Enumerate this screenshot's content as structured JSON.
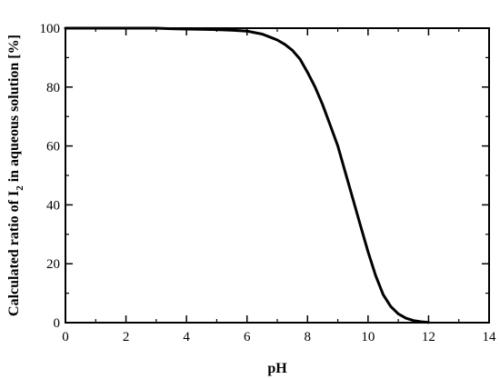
{
  "chart_data": {
    "type": "line",
    "xlabel": "pH",
    "ylabel": {
      "prefix": "Calculated ratio of I",
      "subscript": "2",
      "suffix": " in aqueous solution [%]"
    },
    "xlim": [
      0,
      14
    ],
    "ylim": [
      0,
      100
    ],
    "xticks": [
      0,
      2,
      4,
      6,
      8,
      10,
      12,
      14
    ],
    "yticks": [
      0,
      20,
      40,
      60,
      80,
      100
    ],
    "grid": false,
    "legend": "none",
    "series": [
      {
        "color": "#000000",
        "x": [
          0,
          2,
          3,
          3.5,
          4,
          4.5,
          5,
          5.5,
          6,
          6.25,
          6.5,
          6.75,
          7,
          7.25,
          7.5,
          7.75,
          8,
          8.25,
          8.5,
          8.75,
          9,
          9.25,
          9.5,
          9.75,
          10,
          10.25,
          10.5,
          10.75,
          11,
          11.25,
          11.5,
          11.75,
          12
        ],
        "y": [
          100,
          100,
          100,
          99.8,
          99.7,
          99.6,
          99.5,
          99.3,
          99,
          98.5,
          98,
          97,
          96,
          94.5,
          92.5,
          89.5,
          85,
          80,
          74,
          67,
          60,
          51,
          42,
          33,
          24,
          16,
          9.5,
          5.5,
          3,
          1.5,
          0.7,
          0.3,
          0.1
        ]
      }
    ]
  }
}
